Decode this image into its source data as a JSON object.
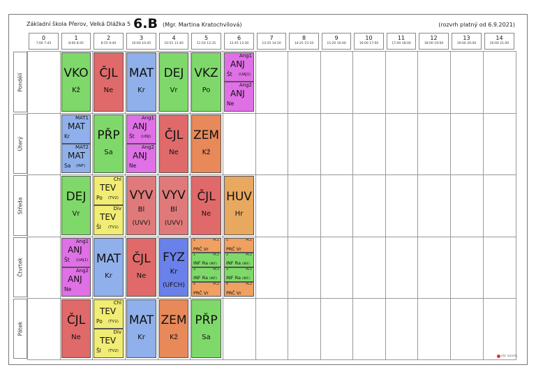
{
  "header": {
    "school": "Základní škola Přerov, Velká Dlážka 5",
    "class_name": "6.B",
    "teacher": "(Mgr. Martina Kratochvílová)",
    "validity": "(rozvrh platný od 6.9.2021)"
  },
  "periods": [
    {
      "num": "0",
      "time": "7:00 7:45"
    },
    {
      "num": "1",
      "time": "8:00 8:45"
    },
    {
      "num": "2",
      "time": "8:55 9:40"
    },
    {
      "num": "3",
      "time": "10:00 10:45"
    },
    {
      "num": "4",
      "time": "10:55 11:40"
    },
    {
      "num": "5",
      "time": "11:50 12:35"
    },
    {
      "num": "6",
      "time": "12:45 13:30"
    },
    {
      "num": "7",
      "time": "13:35 14:20"
    },
    {
      "num": "8",
      "time": "14:25 15:10"
    },
    {
      "num": "9",
      "time": "15:20 16:00"
    },
    {
      "num": "10",
      "time": "16:00 17:00"
    },
    {
      "num": "11",
      "time": "17:00 18:00"
    },
    {
      "num": "12",
      "time": "18:00 19:00"
    },
    {
      "num": "13",
      "time": "19:00 20:00"
    },
    {
      "num": "14",
      "time": "20:00 21:00"
    }
  ],
  "days": [
    "Pondělí",
    "Úterý",
    "Středa",
    "Čtvrtek",
    "Pátek"
  ],
  "colors": {
    "VKO": "#7fd96a",
    "CJL": "#e06a6a",
    "MAT": "#8fb0ea",
    "DEJ": "#7fd96a",
    "VKZ": "#7fd96a",
    "ANJ": "#e070e6",
    "PRP": "#7fd96a",
    "ZEM": "#e8895a",
    "TEV": "#f1ec73",
    "VYV": "#e07a7a",
    "HUV": "#e8a860",
    "FYZ": "#6a80ea",
    "PRC": "#f0a060",
    "INF": "#7fd96a"
  },
  "lessons": [
    {
      "day": 0,
      "p": 1,
      "subj": "VKO",
      "teach": "Kž",
      "color": "VKO"
    },
    {
      "day": 0,
      "p": 2,
      "subj": "ČJL",
      "teach": "Ne",
      "color": "CJL"
    },
    {
      "day": 0,
      "p": 3,
      "subj": "MAT",
      "teach": "Kr",
      "color": "MAT"
    },
    {
      "day": 0,
      "p": 4,
      "subj": "DEJ",
      "teach": "Vr",
      "color": "DEJ"
    },
    {
      "day": 0,
      "p": 5,
      "subj": "VKZ",
      "teach": "Po",
      "color": "VKZ"
    },
    {
      "day": 1,
      "p": 2,
      "subj": "PŘP",
      "teach": "Sa",
      "color": "PRP"
    },
    {
      "day": 1,
      "p": 4,
      "subj": "ČJL",
      "teach": "Ne",
      "color": "CJL"
    },
    {
      "day": 1,
      "p": 5,
      "subj": "ZEM",
      "teach": "Kž",
      "color": "ZEM"
    },
    {
      "day": 2,
      "p": 1,
      "subj": "DEJ",
      "teach": "Vr",
      "color": "DEJ"
    },
    {
      "day": 2,
      "p": 3,
      "subj": "VYV",
      "teach": "Bl",
      "room": "(UVV)",
      "color": "VYV"
    },
    {
      "day": 2,
      "p": 4,
      "subj": "VYV",
      "teach": "Bl",
      "room": "(UVV)",
      "color": "VYV"
    },
    {
      "day": 2,
      "p": 5,
      "subj": "ČJL",
      "teach": "Ne",
      "color": "CJL"
    },
    {
      "day": 2,
      "p": 6,
      "subj": "HUV",
      "teach": "Hr",
      "color": "HUV"
    },
    {
      "day": 3,
      "p": 2,
      "subj": "MAT",
      "teach": "Kr",
      "color": "MAT"
    },
    {
      "day": 3,
      "p": 3,
      "subj": "ČJL",
      "teach": "Ne",
      "color": "CJL"
    },
    {
      "day": 3,
      "p": 4,
      "subj": "FYZ",
      "teach": "Kr",
      "room": "(UFCH)",
      "color": "FYZ"
    },
    {
      "day": 4,
      "p": 1,
      "subj": "ČJL",
      "teach": "Ne",
      "color": "CJL"
    },
    {
      "day": 4,
      "p": 3,
      "subj": "MAT",
      "teach": "Kr",
      "color": "MAT"
    },
    {
      "day": 4,
      "p": 4,
      "subj": "ZEM",
      "teach": "Kž",
      "color": "ZEM"
    },
    {
      "day": 4,
      "p": 5,
      "subj": "PŘP",
      "teach": "Sa",
      "color": "PRP"
    }
  ],
  "half_lessons": [
    {
      "day": 0,
      "p": 6,
      "half": 0,
      "grp": "Ang1",
      "subj": "ANJ",
      "teach": "Št",
      "room": "(UAJ1)",
      "color": "ANJ"
    },
    {
      "day": 0,
      "p": 6,
      "half": 1,
      "grp": "Ang2",
      "subj": "ANJ",
      "teach": "Ne",
      "room": "",
      "color": "ANJ"
    },
    {
      "day": 1,
      "p": 1,
      "half": 0,
      "grp": "MAT1",
      "subj": "MAT",
      "teach": "Kr",
      "room": "",
      "color": "MAT"
    },
    {
      "day": 1,
      "p": 1,
      "half": 1,
      "grp": "MAT2",
      "subj": "MAT",
      "teach": "Sa",
      "room": "(INF)",
      "color": "MAT"
    },
    {
      "day": 1,
      "p": 3,
      "half": 0,
      "grp": "Ang1",
      "subj": "ANJ",
      "teach": "Št",
      "room": "(UNJ)",
      "color": "ANJ"
    },
    {
      "day": 1,
      "p": 3,
      "half": 1,
      "grp": "Ang2",
      "subj": "ANJ",
      "teach": "Ne",
      "room": "",
      "color": "ANJ"
    },
    {
      "day": 2,
      "p": 2,
      "half": 0,
      "grp": "Chl",
      "subj": "TEV",
      "teach": "Po",
      "room": "(TV2)",
      "color": "TEV"
    },
    {
      "day": 2,
      "p": 2,
      "half": 1,
      "grp": "Dív",
      "subj": "TEV",
      "teach": "Šl",
      "room": "(TV1)",
      "color": "TEV"
    },
    {
      "day": 3,
      "p": 1,
      "half": 0,
      "grp": "Ang1",
      "subj": "ANJ",
      "teach": "Št",
      "room": "(UAJ1)",
      "color": "ANJ"
    },
    {
      "day": 3,
      "p": 1,
      "half": 1,
      "grp": "Ang2",
      "subj": "ANJ",
      "teach": "Ne",
      "room": "",
      "color": "ANJ"
    },
    {
      "day": 4,
      "p": 2,
      "half": 0,
      "grp": "Chl",
      "subj": "TEV",
      "teach": "Po",
      "room": "(TV1)",
      "color": "TEV"
    },
    {
      "day": 4,
      "p": 2,
      "half": 1,
      "grp": "Dív",
      "subj": "TEV",
      "teach": "Šl",
      "room": "(TV2)",
      "color": "TEV"
    }
  ],
  "quarter_lessons": [
    {
      "day": 3,
      "p": 5,
      "q": 0,
      "num": "1",
      "grp": "PČ1",
      "text": "PRČ Vr",
      "room": "",
      "color": "PRC"
    },
    {
      "day": 3,
      "p": 5,
      "q": 1,
      "num": "2",
      "grp": "PČ1",
      "text": "INF Ra",
      "room": "(INF)",
      "color": "INF"
    },
    {
      "day": 3,
      "p": 5,
      "q": 2,
      "num": "3",
      "grp": "PČ1",
      "text": "INF Ra",
      "room": "(INF)",
      "color": "INF"
    },
    {
      "day": 3,
      "p": 5,
      "q": 3,
      "num": "4",
      "grp": "PČ2",
      "text": "PRČ Vr",
      "room": "",
      "color": "PRC"
    },
    {
      "day": 3,
      "p": 6,
      "q": 0,
      "num": "1",
      "grp": "PČ1",
      "text": "PRČ Vr",
      "room": "",
      "color": "PRC"
    },
    {
      "day": 3,
      "p": 6,
      "q": 1,
      "num": "2",
      "grp": "PČ1",
      "text": "INF Ra",
      "room": "(INF)",
      "color": "INF"
    },
    {
      "day": 3,
      "p": 6,
      "q": 2,
      "num": "3",
      "grp": "PČ1",
      "text": "INF Ra",
      "room": "(INF)",
      "color": "INF"
    },
    {
      "day": 3,
      "p": 6,
      "q": 3,
      "num": "4",
      "grp": "PČ2",
      "text": "PRČ Vr",
      "room": "",
      "color": "PRC"
    }
  ],
  "logo": "aSc rozvrhy"
}
